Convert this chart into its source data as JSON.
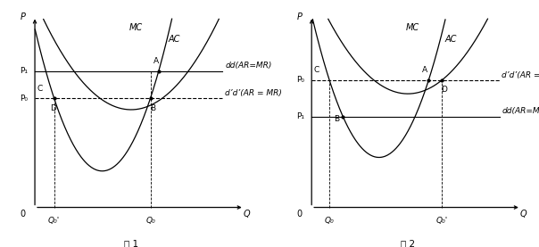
{
  "fig1": {
    "title": "图 1",
    "P1": 0.72,
    "P0": 0.6,
    "ac_min_q": 0.5,
    "ac_min_p": 0.55,
    "mc_min_q": 0.38,
    "mc_min_p": 0.28,
    "ac_a": 3.0,
    "mc_a": 8.0,
    "labels": {
      "P": "P",
      "Q": "Q",
      "O": "0",
      "P1": "P₁",
      "P0": "P₀",
      "Q0": "Q₀",
      "Qa": "Q₀'",
      "A": "A",
      "B": "B",
      "C": "C",
      "D": "D",
      "MC": "MC",
      "AC": "AC",
      "dd": "dd(AR=MR)",
      "dada": "d’d’(AR = MR)"
    }
  },
  "fig2": {
    "title": "图 2",
    "P0": 0.68,
    "P1": 0.52,
    "ac_min_q": 0.5,
    "ac_min_p": 0.62,
    "mc_min_q": 0.38,
    "mc_min_p": 0.34,
    "ac_a": 3.0,
    "mc_a": 8.0,
    "labels": {
      "P": "P",
      "Q": "Q",
      "O": "0",
      "P0": "P₀",
      "P1": "P₁",
      "Q0": "Q₀",
      "Qa": "Q₀'",
      "A": "A",
      "B": "B",
      "C": "C",
      "D": "D",
      "MC": "MC",
      "AC": "AC",
      "dd": "dd(AR=MR)",
      "dada": "d’d’(AR = MR)"
    }
  },
  "lc": "black",
  "fs": 7,
  "fs_small": 6.5
}
